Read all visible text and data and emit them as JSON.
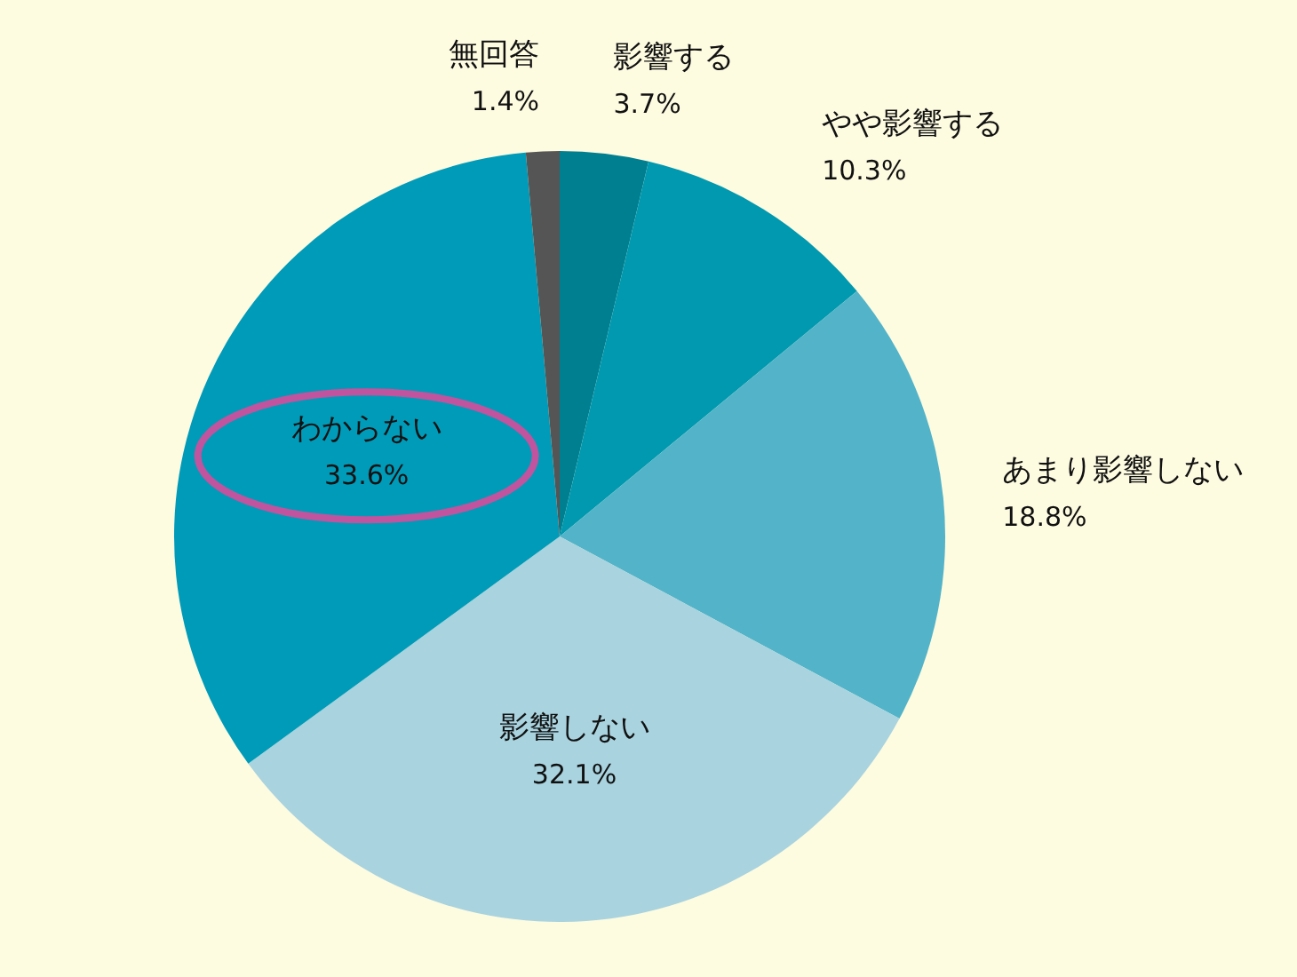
{
  "chart_data": {
    "type": "pie",
    "categories": [
      "影響する",
      "やや影響する",
      "あまり影響しない",
      "影響しない",
      "わからない",
      "無回答"
    ],
    "values": [
      3.7,
      10.3,
      18.8,
      32.1,
      33.6,
      1.4
    ],
    "value_labels": [
      "3.7%",
      "10.3%",
      "18.8%",
      "32.1%",
      "33.6%",
      "1.4%"
    ],
    "colors": [
      "#007f91",
      "#0099b0",
      "#52b3c9",
      "#a8d3df",
      "#009bb9",
      "#555555"
    ]
  }
}
